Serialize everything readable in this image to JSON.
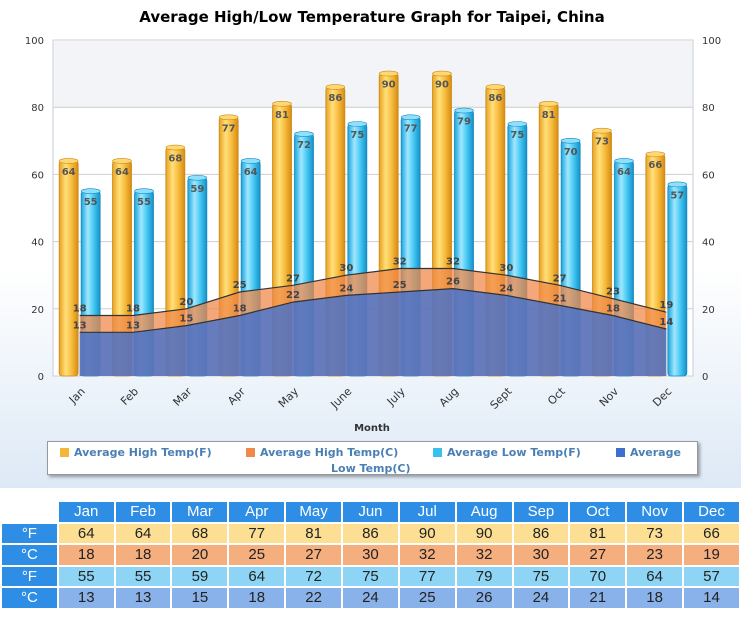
{
  "chart_data": {
    "type": "bar",
    "title": "Average High/Low Temperature Graph for Taipei, China",
    "xlabel": "Month",
    "ylabel": "",
    "ylim": [
      0,
      100
    ],
    "yticks": [
      0,
      20,
      40,
      60,
      80,
      100
    ],
    "categories": [
      "Jan",
      "Feb",
      "Mar",
      "Apr",
      "May",
      "June",
      "July",
      "Aug",
      "Sept",
      "Oct",
      "Nov",
      "Dec"
    ],
    "series": [
      {
        "name": "Average High Temp(F)",
        "kind": "bar",
        "color": "#f4b638",
        "values": [
          64,
          64,
          68,
          77,
          81,
          86,
          90,
          90,
          86,
          81,
          73,
          66
        ]
      },
      {
        "name": "Average High Temp(C)",
        "kind": "area",
        "color": "#f08a4b",
        "values": [
          18,
          18,
          20,
          25,
          27,
          30,
          32,
          32,
          30,
          27,
          23,
          19
        ]
      },
      {
        "name": "Average Low Temp(F)",
        "kind": "bar",
        "color": "#36c1ef",
        "values": [
          55,
          55,
          59,
          64,
          72,
          75,
          77,
          79,
          75,
          70,
          64,
          57
        ]
      },
      {
        "name": "Average Low Temp(C)",
        "kind": "area",
        "color": "#3d6fd1",
        "values": [
          13,
          13,
          15,
          18,
          22,
          24,
          25,
          26,
          24,
          21,
          18,
          14
        ]
      }
    ],
    "grid": true,
    "legend": "bottom"
  },
  "legend": {
    "items": [
      {
        "label": "Average High Temp(F)",
        "color": "#f4b638"
      },
      {
        "label": "Average High Temp(C)",
        "color": "#f08a4b"
      },
      {
        "label": "Average Low Temp(F)",
        "color": "#36c1ef"
      },
      {
        "label": "Average",
        "color": "#3d6fd1"
      }
    ],
    "wrap": "Low Temp(C)"
  },
  "table": {
    "months": [
      "Jan",
      "Feb",
      "Mar",
      "Apr",
      "May",
      "Jun",
      "Jul",
      "Aug",
      "Sep",
      "Oct",
      "Nov",
      "Dec"
    ],
    "rows": [
      {
        "unit": "°F",
        "values": [
          64,
          64,
          68,
          77,
          81,
          86,
          90,
          90,
          86,
          81,
          73,
          66
        ]
      },
      {
        "unit": "°C",
        "values": [
          18,
          18,
          20,
          25,
          27,
          30,
          32,
          32,
          30,
          27,
          23,
          19
        ]
      },
      {
        "unit": "°F",
        "values": [
          55,
          55,
          59,
          64,
          72,
          75,
          77,
          79,
          75,
          70,
          64,
          57
        ]
      },
      {
        "unit": "°C",
        "values": [
          13,
          13,
          15,
          18,
          22,
          24,
          25,
          26,
          24,
          21,
          18,
          14
        ]
      }
    ]
  }
}
